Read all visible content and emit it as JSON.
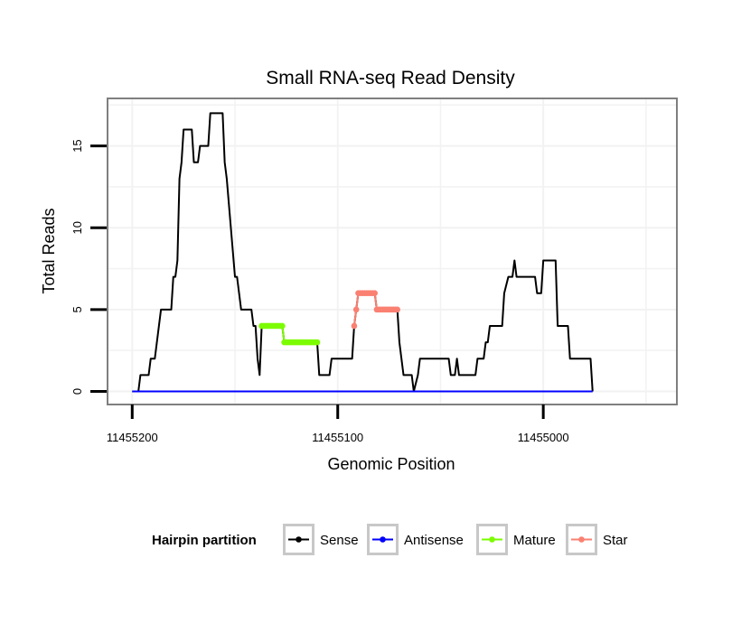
{
  "chart_data": {
    "type": "line",
    "title": "Small RNA-seq Read Density",
    "xlabel": "Genomic Position",
    "ylabel": "Total Reads",
    "xlim": [
      11455212,
      11454935
    ],
    "ylim": [
      -0.8,
      17.9
    ],
    "x_reversed": true,
    "xticks": [
      11455200,
      11455100,
      11455000
    ],
    "xtick_labels": [
      "11455200",
      "11455100",
      "11455000"
    ],
    "yticks": [
      0,
      5,
      10,
      15
    ],
    "ytick_labels": [
      "0",
      "5",
      "10",
      "15"
    ],
    "grid": true,
    "legend": {
      "title": "Hairpin partition",
      "position": "bottom",
      "entries": [
        "Sense",
        "Antisense",
        "Mature",
        "Star"
      ]
    },
    "series": [
      {
        "name": "Sense",
        "color": "#000000",
        "markers": false,
        "points": [
          [
            11455200,
            0
          ],
          [
            11455197,
            0
          ],
          [
            11455196,
            1
          ],
          [
            11455192,
            1
          ],
          [
            11455191,
            2
          ],
          [
            11455189,
            2
          ],
          [
            11455187,
            4
          ],
          [
            11455186,
            5
          ],
          [
            11455181,
            5
          ],
          [
            11455180,
            7
          ],
          [
            11455179,
            7
          ],
          [
            11455178,
            8
          ],
          [
            11455177,
            13
          ],
          [
            11455176,
            14
          ],
          [
            11455175,
            16
          ],
          [
            11455171,
            16
          ],
          [
            11455170,
            14
          ],
          [
            11455168,
            14
          ],
          [
            11455167,
            15
          ],
          [
            11455163,
            15
          ],
          [
            11455162,
            17
          ],
          [
            11455156,
            17
          ],
          [
            11455155,
            14
          ],
          [
            11455154,
            13
          ],
          [
            11455150,
            7
          ],
          [
            11455149,
            7
          ],
          [
            11455147,
            5
          ],
          [
            11455142,
            5
          ],
          [
            11455141,
            4
          ],
          [
            11455140,
            4
          ],
          [
            11455139,
            2
          ],
          [
            11455138,
            1
          ],
          [
            11455137,
            4
          ],
          [
            11455127,
            4
          ],
          [
            11455126,
            3
          ],
          [
            11455110,
            3
          ],
          [
            11455109,
            1
          ],
          [
            11455104,
            1
          ],
          [
            11455103,
            2
          ],
          [
            11455093,
            2
          ],
          [
            11455092,
            4
          ],
          [
            11455091,
            5
          ],
          [
            11455090,
            6
          ],
          [
            11455082,
            6
          ],
          [
            11455081,
            5
          ],
          [
            11455071,
            5
          ],
          [
            11455070,
            3
          ],
          [
            11455069,
            2
          ],
          [
            11455068,
            1
          ],
          [
            11455064,
            1
          ],
          [
            11455063,
            0
          ],
          [
            11455061,
            1
          ],
          [
            11455060,
            2
          ],
          [
            11455046,
            2
          ],
          [
            11455045,
            1
          ],
          [
            11455043,
            1
          ],
          [
            11455042,
            2
          ],
          [
            11455041,
            1
          ],
          [
            11455033,
            1
          ],
          [
            11455032,
            2
          ],
          [
            11455029,
            2
          ],
          [
            11455028,
            3
          ],
          [
            11455027,
            3
          ],
          [
            11455026,
            4
          ],
          [
            11455020,
            4
          ],
          [
            11455019,
            6
          ],
          [
            11455017,
            7
          ],
          [
            11455015,
            7
          ],
          [
            11455014,
            8
          ],
          [
            11455013,
            7
          ],
          [
            11455004,
            7
          ],
          [
            11455003,
            6
          ],
          [
            11455001,
            6
          ],
          [
            11455000,
            8
          ],
          [
            11454994,
            8
          ],
          [
            11454993,
            4
          ],
          [
            11454988,
            4
          ],
          [
            11454987,
            2
          ],
          [
            11454977,
            2
          ],
          [
            11454976,
            0
          ]
        ]
      },
      {
        "name": "Antisense",
        "color": "#0000ff",
        "markers": false,
        "points": [
          [
            11455200,
            0
          ],
          [
            11454976,
            0
          ]
        ]
      },
      {
        "name": "Mature",
        "color": "#7cfc00",
        "markers": true,
        "points": [
          [
            11455137,
            4
          ],
          [
            11455136,
            4
          ],
          [
            11455135,
            4
          ],
          [
            11455134,
            4
          ],
          [
            11455133,
            4
          ],
          [
            11455132,
            4
          ],
          [
            11455131,
            4
          ],
          [
            11455130,
            4
          ],
          [
            11455129,
            4
          ],
          [
            11455128,
            4
          ],
          [
            11455127,
            4
          ],
          [
            11455126,
            3
          ],
          [
            11455125,
            3
          ],
          [
            11455124,
            3
          ],
          [
            11455123,
            3
          ],
          [
            11455122,
            3
          ],
          [
            11455121,
            3
          ],
          [
            11455120,
            3
          ],
          [
            11455119,
            3
          ],
          [
            11455118,
            3
          ],
          [
            11455117,
            3
          ],
          [
            11455116,
            3
          ],
          [
            11455115,
            3
          ],
          [
            11455114,
            3
          ],
          [
            11455113,
            3
          ],
          [
            11455112,
            3
          ],
          [
            11455111,
            3
          ],
          [
            11455110,
            3
          ]
        ]
      },
      {
        "name": "Star",
        "color": "#fa8072",
        "markers": true,
        "points": [
          [
            11455092,
            4
          ],
          [
            11455091,
            5
          ],
          [
            11455090,
            6
          ],
          [
            11455089,
            6
          ],
          [
            11455088,
            6
          ],
          [
            11455087,
            6
          ],
          [
            11455086,
            6
          ],
          [
            11455085,
            6
          ],
          [
            11455084,
            6
          ],
          [
            11455083,
            6
          ],
          [
            11455082,
            6
          ],
          [
            11455081,
            5
          ],
          [
            11455080,
            5
          ],
          [
            11455079,
            5
          ],
          [
            11455078,
            5
          ],
          [
            11455077,
            5
          ],
          [
            11455076,
            5
          ],
          [
            11455075,
            5
          ],
          [
            11455074,
            5
          ],
          [
            11455073,
            5
          ],
          [
            11455072,
            5
          ],
          [
            11455071,
            5
          ]
        ]
      }
    ]
  }
}
